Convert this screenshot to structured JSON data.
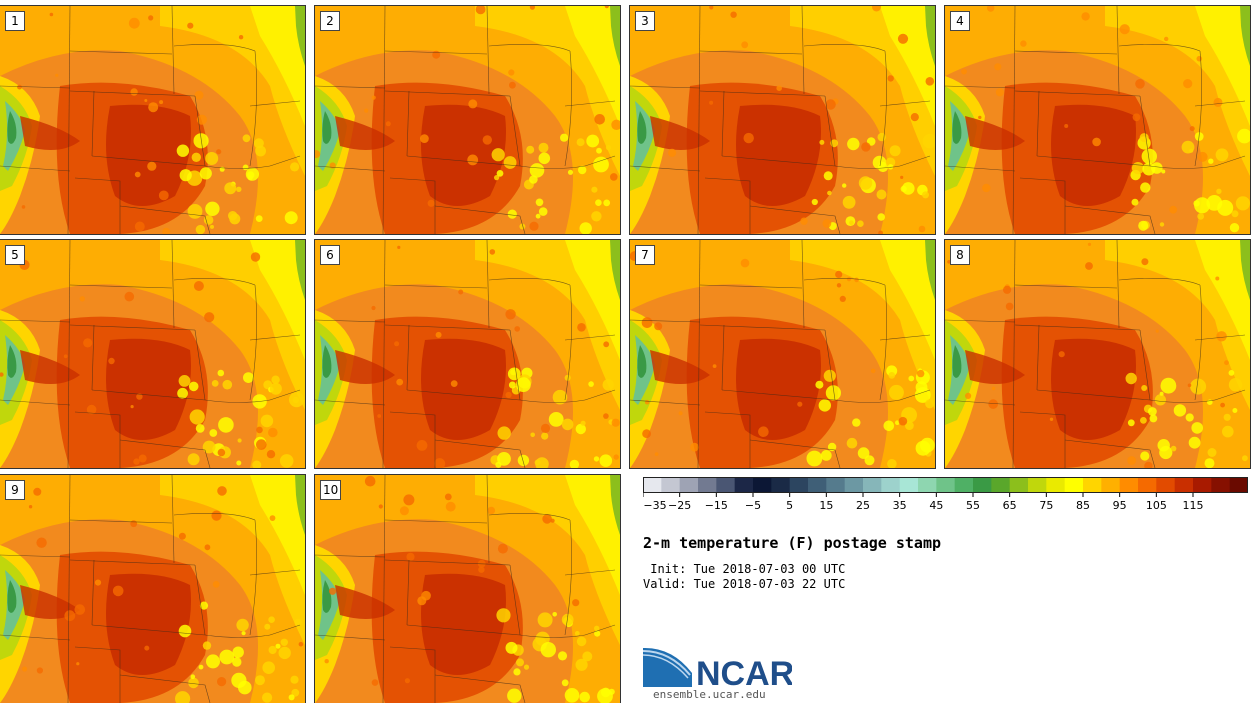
{
  "panels": [
    {
      "label": "1"
    },
    {
      "label": "2"
    },
    {
      "label": "3"
    },
    {
      "label": "4"
    },
    {
      "label": "5"
    },
    {
      "label": "6"
    },
    {
      "label": "7"
    },
    {
      "label": "8"
    },
    {
      "label": "9"
    },
    {
      "label": "10"
    }
  ],
  "colorbar": {
    "tick_labels": [
      "−35",
      "−25",
      "−15",
      "−5",
      "5",
      "15",
      "25",
      "35",
      "45",
      "55",
      "65",
      "75",
      "85",
      "95",
      "105",
      "115"
    ],
    "colors": [
      "#e6e8ee",
      "#c4c7d2",
      "#9ea3b4",
      "#727a91",
      "#4a5673",
      "#1c2747",
      "#0c1735",
      "#1a2a46",
      "#2c4560",
      "#3f5f77",
      "#557b8d",
      "#6c98a3",
      "#86b6b9",
      "#9dd2cc",
      "#a8e6d6",
      "#8ed6b0",
      "#6fc389",
      "#4fb065",
      "#3a9a45",
      "#5aa72b",
      "#8cbf1c",
      "#c0d70c",
      "#eaea00",
      "#ffff00",
      "#ffd500",
      "#ffb000",
      "#ff8c00",
      "#f56a00",
      "#e24b00",
      "#c92f00",
      "#a81a00",
      "#861000",
      "#6a0a00"
    ]
  },
  "title": "2-m temperature (F) postage stamp",
  "init_line": " Init: Tue 2018-07-03 00 UTC",
  "valid_line": "Valid: Tue 2018-07-03 22 UTC",
  "logo": {
    "text": "NCAR",
    "url": "ensemble.ucar.edu"
  }
}
